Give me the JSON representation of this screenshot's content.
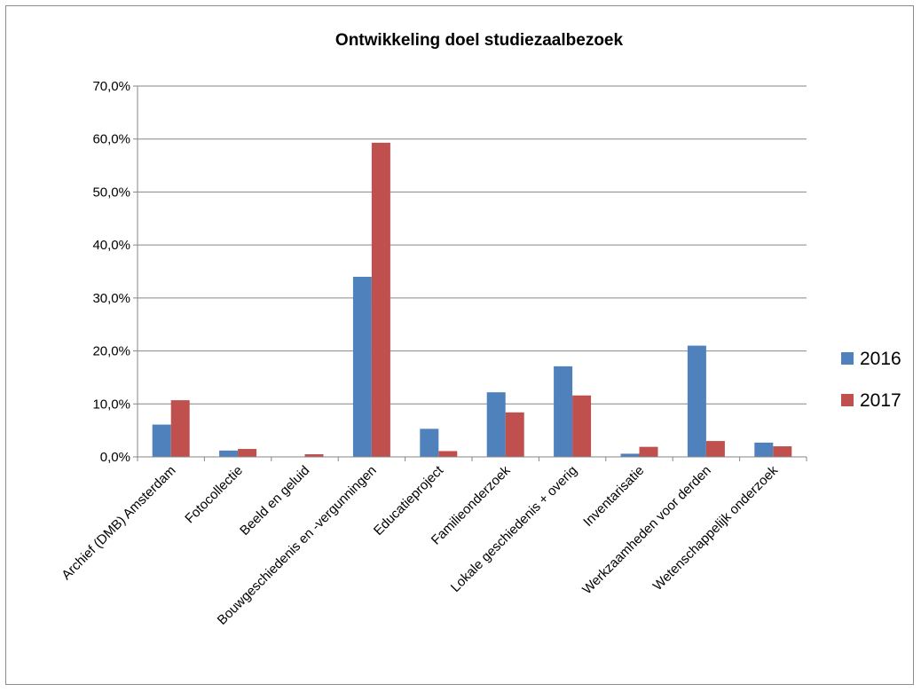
{
  "chart_data": {
    "type": "bar",
    "title": "Ontwikkeling doel studiezaalbezoek",
    "xlabel": "",
    "ylabel": "",
    "categories": [
      "Archief (DMB) Amsterdam",
      "Fotocollectie",
      "Beeld en geluid",
      "Bouwgeschiedenis en -vergunningen",
      "Educatieproject",
      "Familieonderzoek",
      "Lokale geschiedenis + overig",
      "Inventarisatie",
      "Werkzaamheden voor derden",
      "Wetenschappelijk onderzoek"
    ],
    "series": [
      {
        "name": "2016",
        "color": "#4f81bd",
        "values": [
          6.1,
          1.2,
          0.0,
          34.0,
          5.3,
          12.2,
          17.1,
          0.6,
          21.0,
          2.7
        ]
      },
      {
        "name": "2017",
        "color": "#c0504d",
        "values": [
          10.7,
          1.5,
          0.5,
          59.3,
          1.1,
          8.4,
          11.6,
          1.9,
          3.0,
          2.0
        ]
      }
    ],
    "ylim": [
      0,
      70
    ],
    "yticks": [
      "0,0%",
      "10,0%",
      "20,0%",
      "30,0%",
      "40,0%",
      "50,0%",
      "60,0%",
      "70,0%"
    ],
    "grid": true,
    "legend_position": "right"
  }
}
